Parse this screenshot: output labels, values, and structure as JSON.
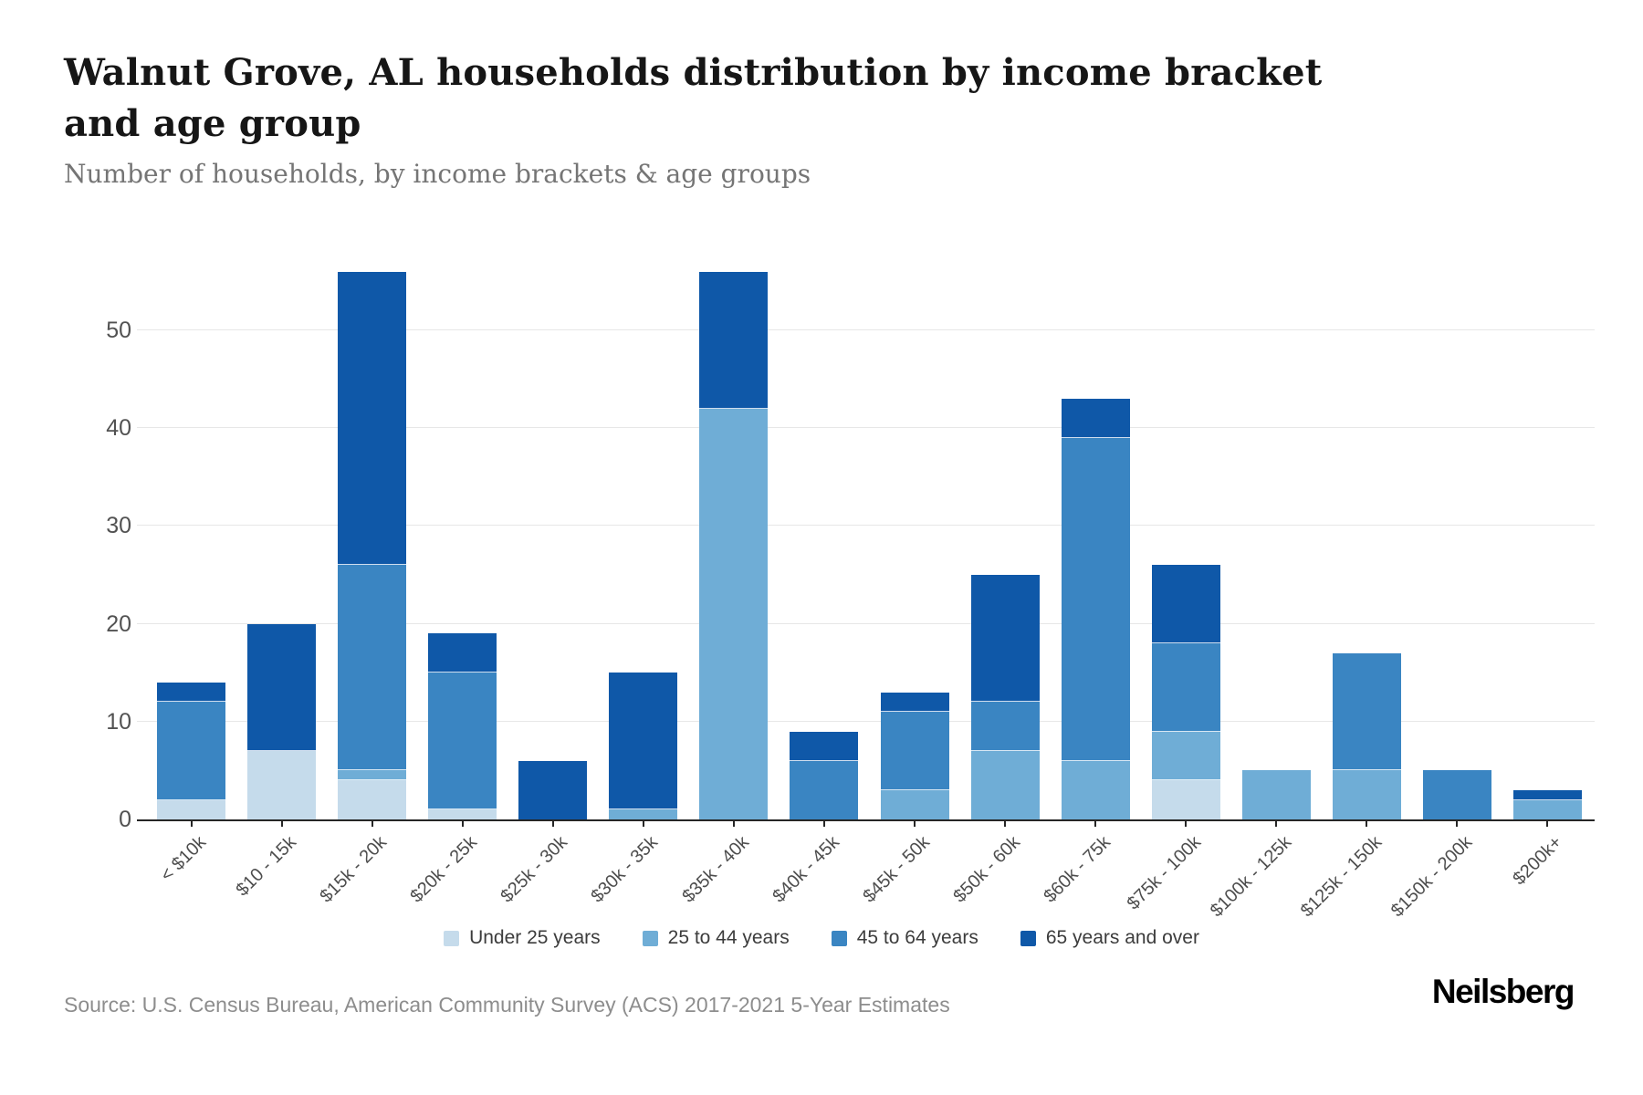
{
  "header": {
    "title": "Walnut Grove, AL households distribution by income bracket and age group",
    "subtitle": "Number of households, by income brackets & age groups"
  },
  "footer": {
    "source": "Source: U.S. Census Bureau, American Community Survey (ACS) 2017-2021 5-Year Estimates",
    "logo": "Neilsberg"
  },
  "colors": {
    "under_25": "#c5dbeb",
    "25_to_44": "#6fadd6",
    "45_to_64": "#3a85c2",
    "65_and_over": "#0f58a8",
    "axis_line": "#262626",
    "gridline": "#e7e7e7"
  },
  "chart_data": {
    "type": "bar",
    "stacked": true,
    "title": "Walnut Grove, AL households distribution by income bracket and age group",
    "subtitle": "Number of households, by income brackets & age groups",
    "xlabel": "",
    "ylabel": "",
    "yticks": [
      0,
      10,
      20,
      30,
      40,
      50
    ],
    "ylim": [
      0,
      60
    ],
    "grid": true,
    "legend_position": "bottom",
    "categories": [
      "< $10k",
      "$10 - 15k",
      "$15k - 20k",
      "$20k - 25k",
      "$25k - 30k",
      "$30k - 35k",
      "$35k - 40k",
      "$40k - 45k",
      "$45k - 50k",
      "$50k - 60k",
      "$60k - 75k",
      "$75k - 100k",
      "$100k - 125k",
      "$125k - 150k",
      "$150k - 200k",
      "$200k+"
    ],
    "series": [
      {
        "name": "Under 25 years",
        "color": "#c5dbeb",
        "values": [
          2,
          7,
          4,
          1,
          0,
          0,
          0,
          0,
          0,
          0,
          0,
          4,
          0,
          0,
          0,
          0
        ]
      },
      {
        "name": "25 to 44 years",
        "color": "#6fadd6",
        "values": [
          0,
          0,
          1,
          0,
          0,
          1,
          42,
          0,
          3,
          7,
          6,
          5,
          5,
          5,
          0,
          2
        ]
      },
      {
        "name": "45 to 64 years",
        "color": "#3a85c2",
        "values": [
          10,
          0,
          21,
          14,
          0,
          0,
          0,
          6,
          8,
          5,
          33,
          9,
          0,
          12,
          5,
          0
        ]
      },
      {
        "name": "65 years and over",
        "color": "#0f58a8",
        "values": [
          2,
          13,
          30,
          4,
          6,
          14,
          14,
          3,
          2,
          13,
          4,
          8,
          0,
          0,
          0,
          1
        ]
      }
    ],
    "totals": [
      14,
      20,
      56,
      19,
      6,
      15,
      56,
      9,
      13,
      25,
      43,
      26,
      5,
      17,
      5,
      3
    ]
  }
}
